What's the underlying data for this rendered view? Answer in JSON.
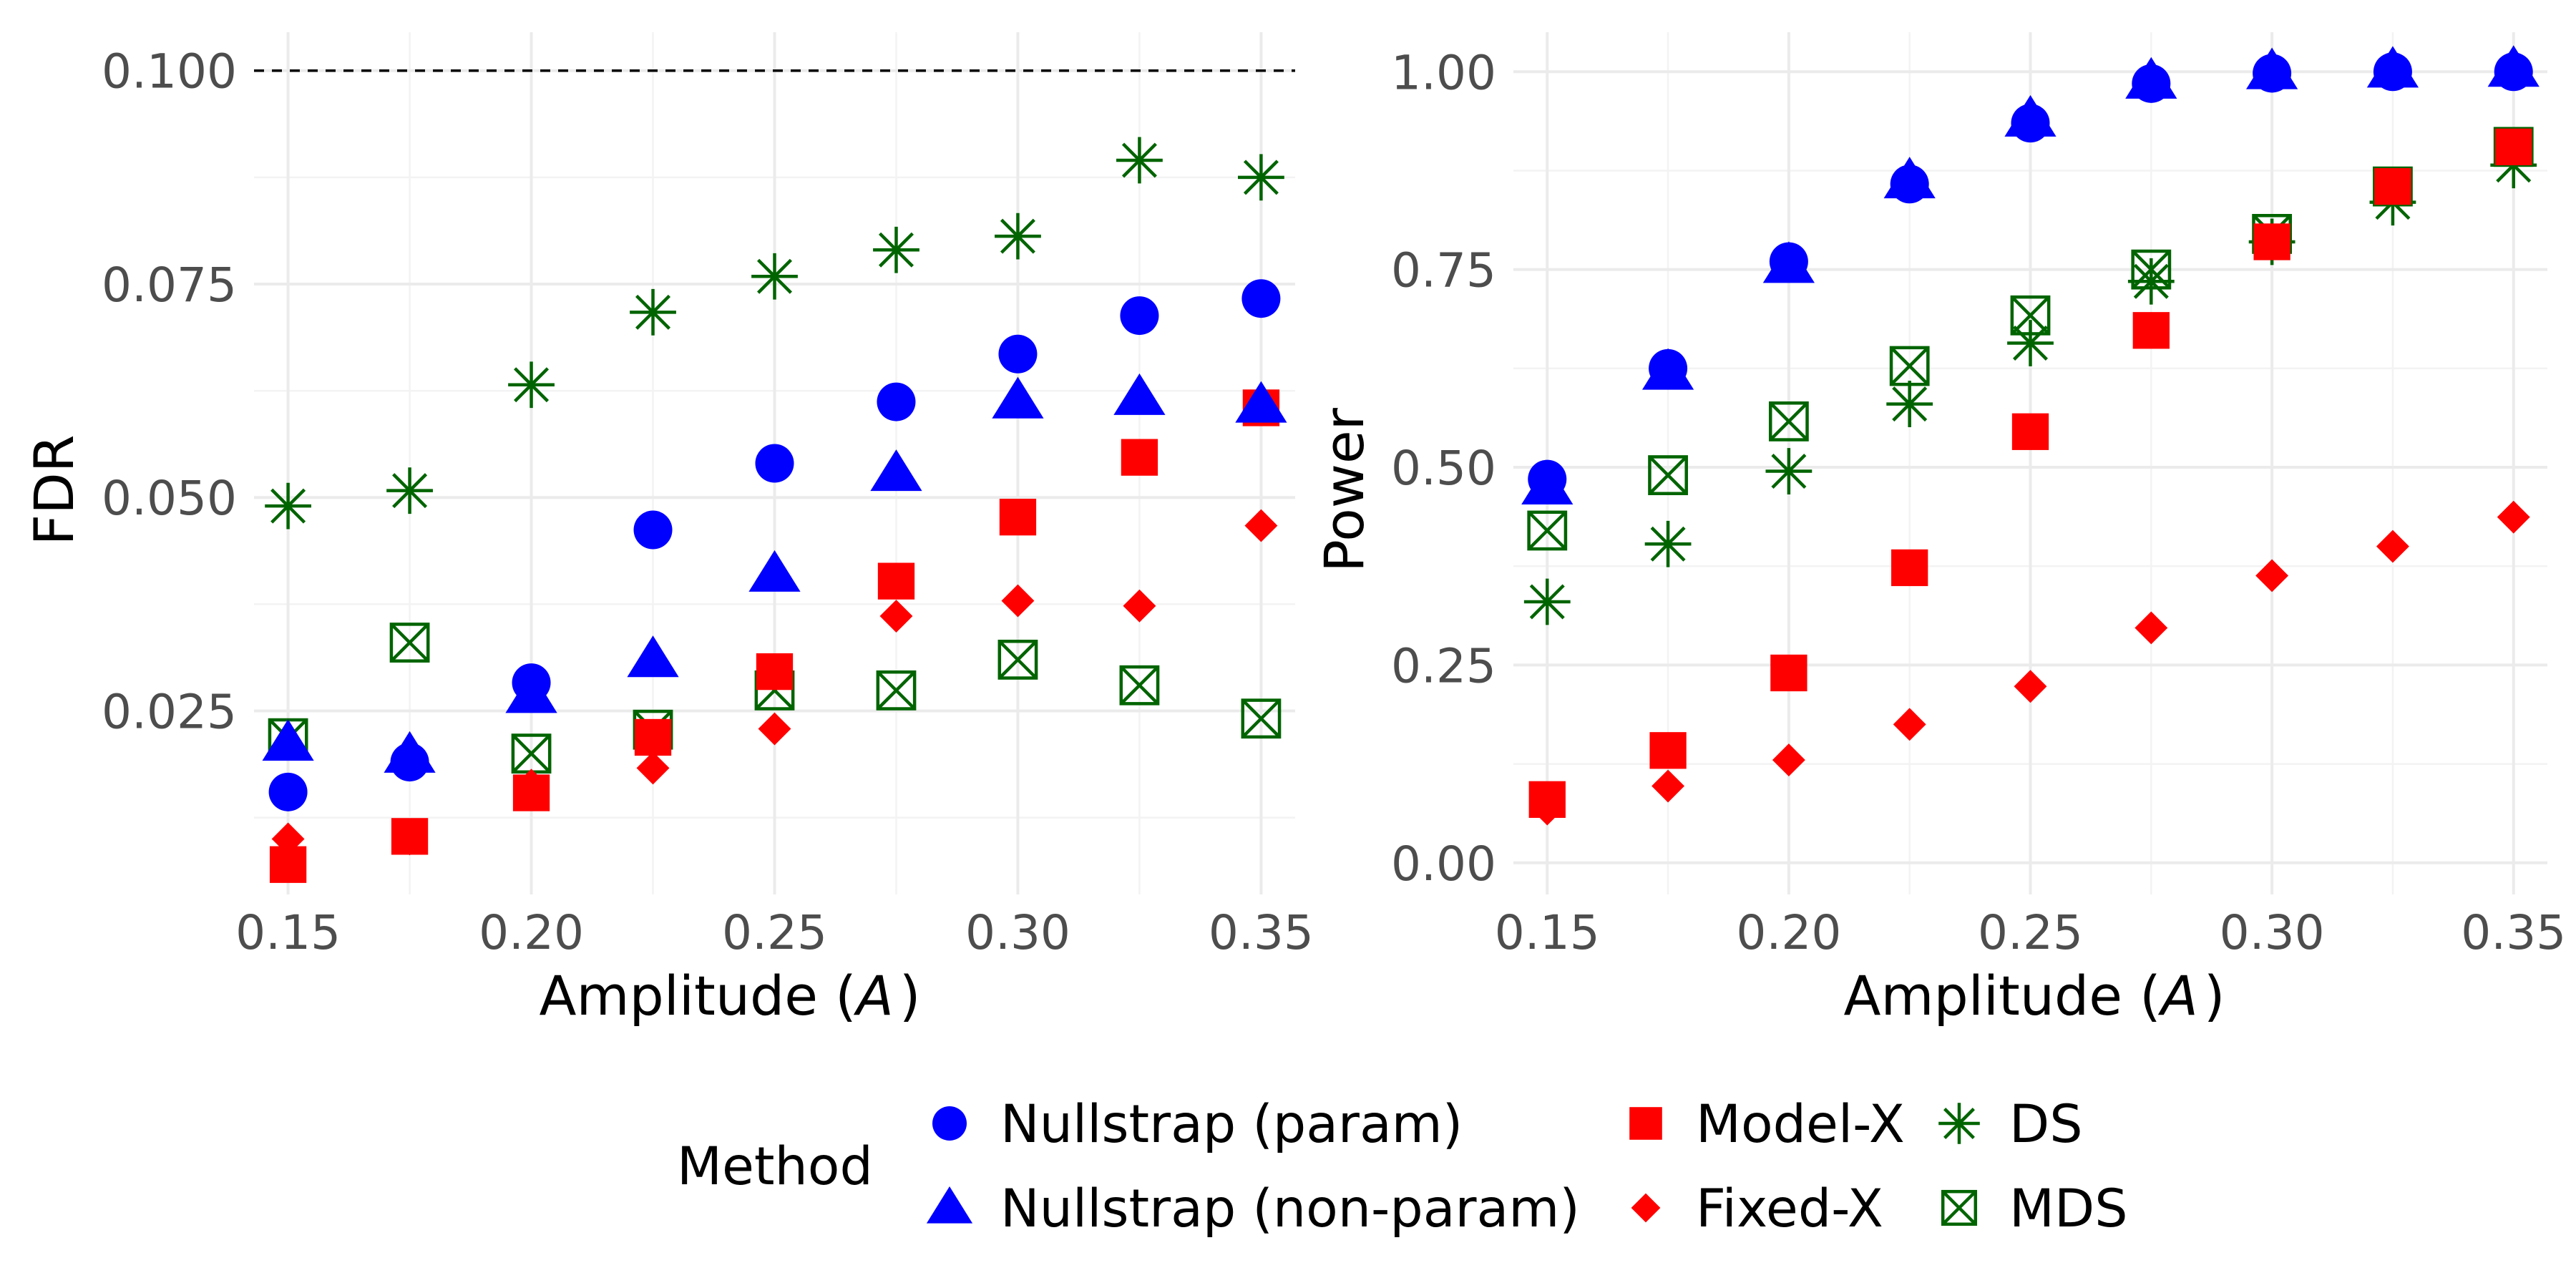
{
  "chart_data": [
    {
      "type": "scatter",
      "panel": "left",
      "xlabel_prefix": "Amplitude (",
      "xlabel_symbol": "A",
      "xlabel_suffix": ")",
      "ylabel": "FDR",
      "xlim": [
        0.143,
        0.357
      ],
      "ylim": [
        0.0035,
        0.1045
      ],
      "xticks": [
        0.15,
        0.2,
        0.25,
        0.3,
        0.35
      ],
      "xtick_labels": [
        "0.15",
        "0.20",
        "0.25",
        "0.30",
        "0.35"
      ],
      "yticks": [
        0.025,
        0.05,
        0.075,
        0.1
      ],
      "ytick_labels": [
        "0.025",
        "0.050",
        "0.075",
        "0.100"
      ],
      "yminor": [
        0.0125,
        0.0375,
        0.0625,
        0.0875
      ],
      "xminor": [
        0.175,
        0.225,
        0.275,
        0.325
      ],
      "reference_line": 0.1,
      "x": [
        0.15,
        0.175,
        0.2,
        0.225,
        0.25,
        0.275,
        0.3,
        0.325,
        0.35
      ],
      "series": [
        {
          "name": "Nullstrap (param)",
          "values": [
            0.0155,
            0.019,
            0.0283,
            0.0462,
            0.054,
            0.0612,
            0.0668,
            0.0713,
            0.0733
          ]
        },
        {
          "name": "Nullstrap (non-param)",
          "values": [
            0.0212,
            0.0198,
            0.0268,
            0.031,
            0.041,
            0.0528,
            0.0613,
            0.0617,
            0.0608
          ]
        },
        {
          "name": "Model-X",
          "values": [
            0.007,
            0.0103,
            0.0154,
            0.0219,
            0.0296,
            0.0402,
            0.0477,
            0.0547,
            0.0605
          ]
        },
        {
          "name": "Fixed-X",
          "values": [
            0.01,
            0.01,
            0.0163,
            0.0183,
            0.0229,
            0.0361,
            0.0379,
            0.0373,
            0.0467
          ]
        },
        {
          "name": "DS",
          "values": [
            0.049,
            0.0508,
            0.0632,
            0.0717,
            0.0759,
            0.079,
            0.0806,
            0.0895,
            0.0875
          ]
        },
        {
          "name": "MDS",
          "values": [
            0.0218,
            0.033,
            0.02,
            0.0228,
            0.0274,
            0.0274,
            0.031,
            0.028,
            0.0241
          ]
        }
      ]
    },
    {
      "type": "scatter",
      "panel": "right",
      "xlabel_prefix": "Amplitude (",
      "xlabel_symbol": "A",
      "xlabel_suffix": ")",
      "ylabel": "Power",
      "xlim": [
        0.143,
        0.357
      ],
      "ylim": [
        -0.04,
        1.05
      ],
      "xticks": [
        0.15,
        0.2,
        0.25,
        0.3,
        0.35
      ],
      "xtick_labels": [
        "0.15",
        "0.20",
        "0.25",
        "0.30",
        "0.35"
      ],
      "yticks": [
        0.0,
        0.25,
        0.5,
        0.75,
        1.0
      ],
      "ytick_labels": [
        "0.00",
        "0.25",
        "0.50",
        "0.75",
        "1.00"
      ],
      "yminor": [
        0.125,
        0.375,
        0.625,
        0.875
      ],
      "xminor": [
        0.175,
        0.225,
        0.275,
        0.325
      ],
      "x": [
        0.15,
        0.175,
        0.2,
        0.225,
        0.25,
        0.275,
        0.3,
        0.325,
        0.35
      ],
      "series": [
        {
          "name": "Nullstrap (param)",
          "values": [
            0.485,
            0.625,
            0.76,
            0.858,
            0.935,
            0.985,
            0.998,
            1.0,
            1.0
          ]
        },
        {
          "name": "Nullstrap (non-param)",
          "values": [
            0.475,
            0.62,
            0.755,
            0.862,
            0.94,
            0.988,
            1.0,
            1.002,
            1.003
          ]
        },
        {
          "name": "Model-X",
          "values": [
            0.08,
            0.142,
            0.24,
            0.373,
            0.545,
            0.673,
            0.785,
            0.855,
            0.905
          ]
        },
        {
          "name": "Fixed-X",
          "values": [
            0.068,
            0.097,
            0.13,
            0.175,
            0.223,
            0.297,
            0.363,
            0.4,
            0.437
          ]
        },
        {
          "name": "DS",
          "values": [
            0.33,
            0.403,
            0.495,
            0.58,
            0.657,
            0.735,
            0.785,
            0.835,
            0.882
          ]
        },
        {
          "name": "MDS",
          "values": [
            0.42,
            0.49,
            0.558,
            0.628,
            0.692,
            0.75,
            0.795,
            0.855,
            0.905
          ]
        }
      ]
    }
  ],
  "legend": {
    "title": "Method",
    "items": [
      {
        "label": "Nullstrap (param)",
        "shape": "circle",
        "color": "#0000FF"
      },
      {
        "label": "Nullstrap (non-param)",
        "shape": "triangle",
        "color": "#0000FF"
      },
      {
        "label": "Model-X",
        "shape": "square",
        "color": "#FF0000"
      },
      {
        "label": "Fixed-X",
        "shape": "diamond",
        "color": "#FF0000"
      },
      {
        "label": "DS",
        "shape": "asterisk",
        "color": "#006400"
      },
      {
        "label": "MDS",
        "shape": "boxed-x",
        "color": "#006400"
      }
    ]
  }
}
